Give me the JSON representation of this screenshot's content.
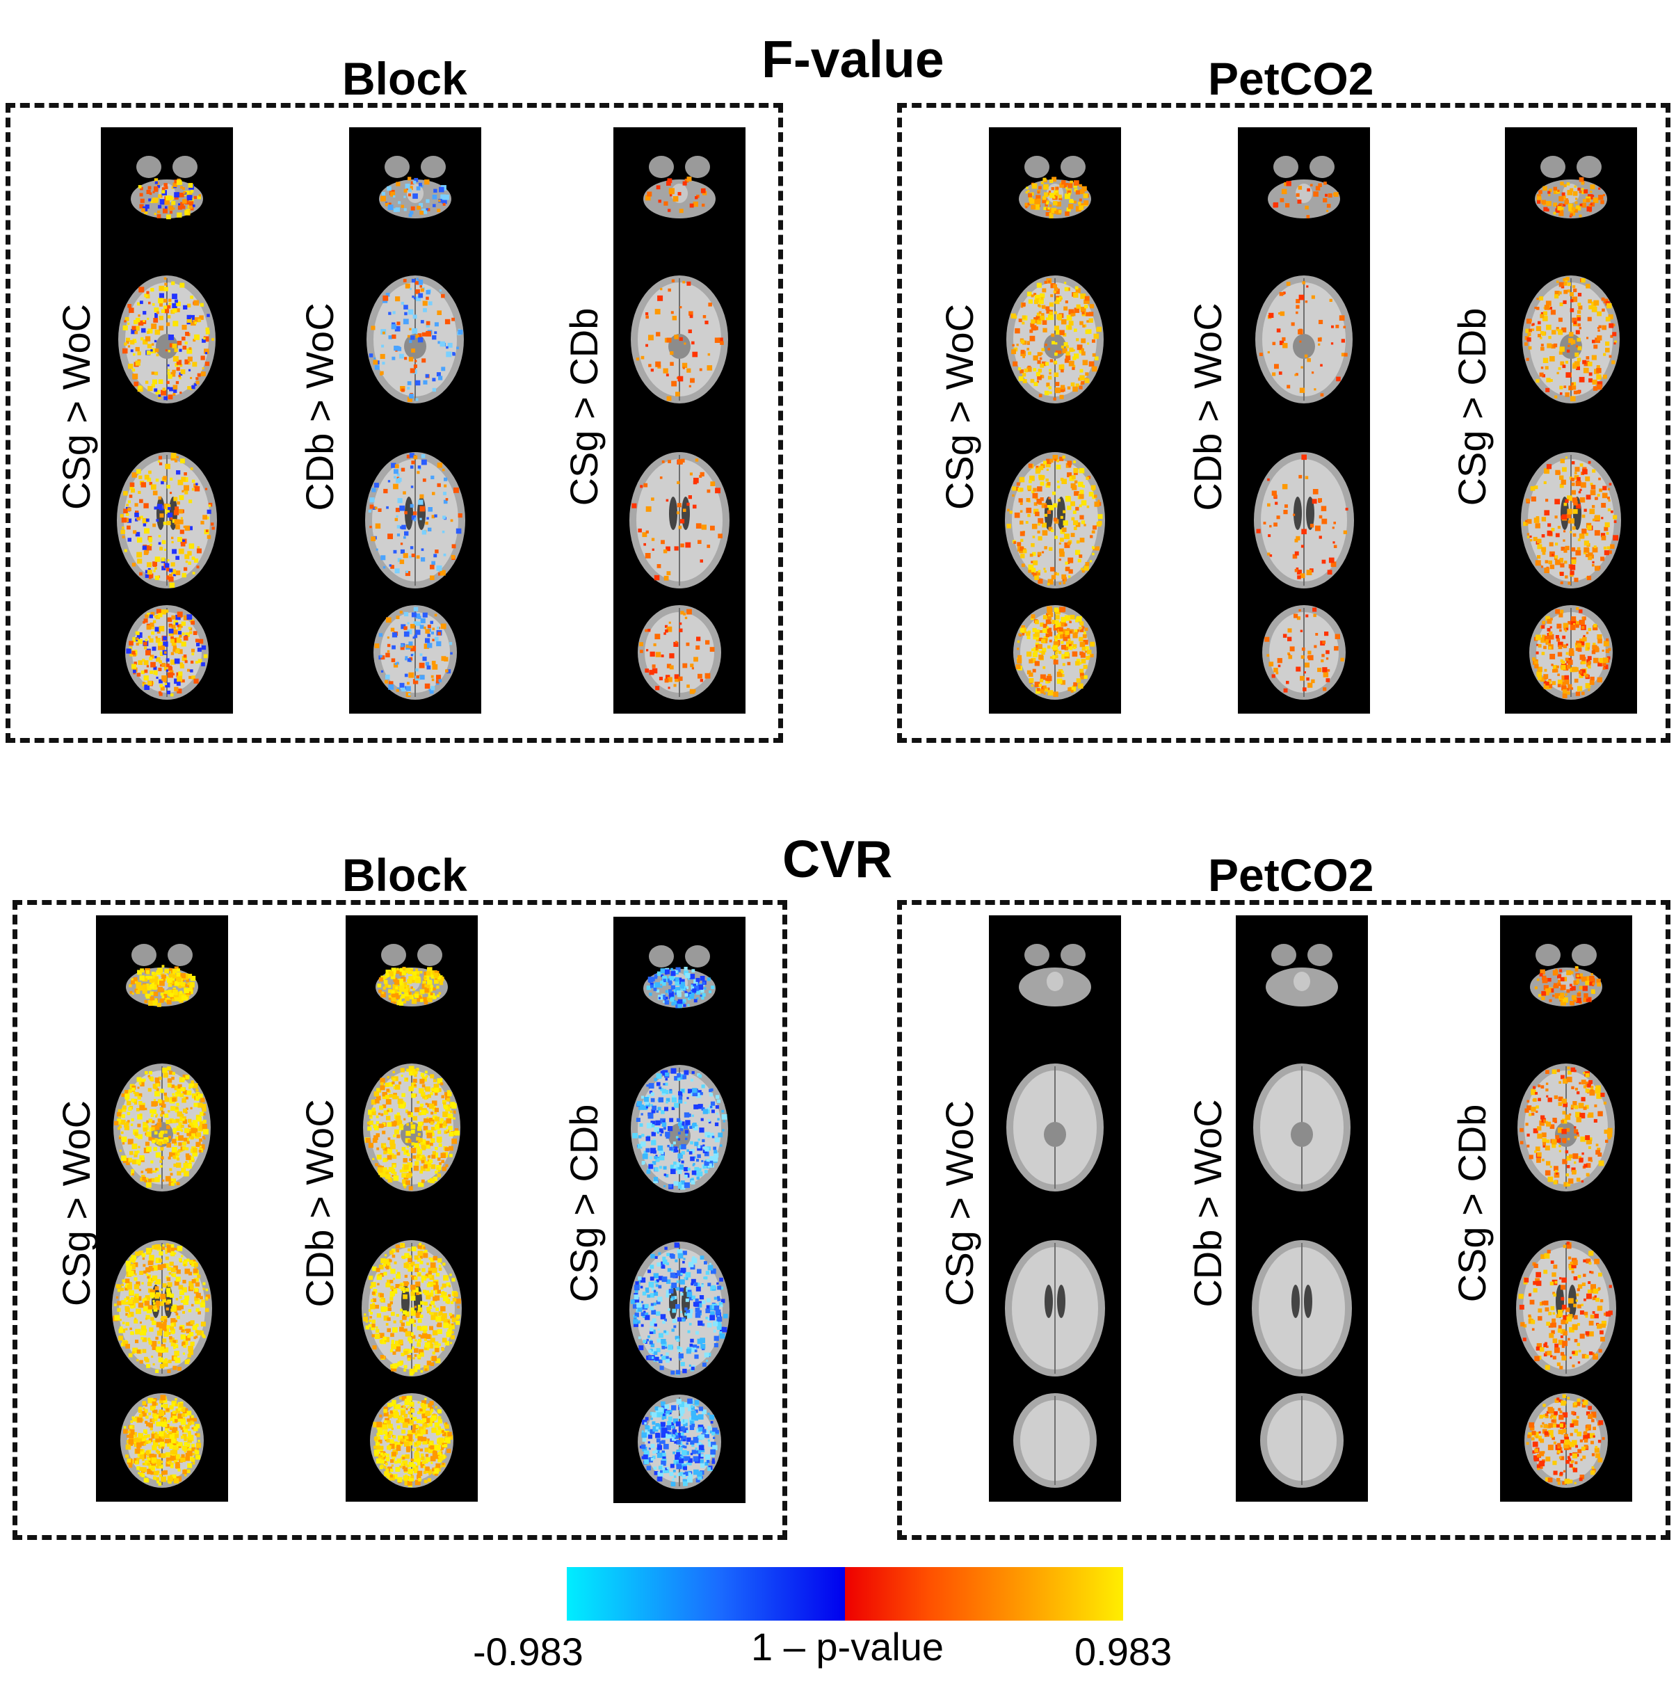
{
  "sections": [
    {
      "title": "F-value",
      "groups": [
        {
          "label": "Block",
          "contrasts": [
            "CSg > WoC",
            "CDb > WoC",
            "CSg > CDb"
          ],
          "overlays": [
            "mixed-yellow",
            "mixed-blue",
            "sparse-red"
          ]
        },
        {
          "label": "PetCO2",
          "contrasts": [
            "CSg > WoC",
            "CDb > WoC",
            "CSg > CDb"
          ],
          "overlays": [
            "yellow",
            "sparse-red",
            "orange"
          ]
        }
      ]
    },
    {
      "title": "CVR",
      "groups": [
        {
          "label": "Block",
          "contrasts": [
            "CSg > WoC",
            "CDb > WoC",
            "CSg > CDb"
          ],
          "overlays": [
            "solid-yellow",
            "solid-yellow",
            "cyan"
          ]
        },
        {
          "label": "PetCO2",
          "contrasts": [
            "CSg > WoC",
            "CDb > WoC",
            "CSg > CDb"
          ],
          "overlays": [
            "none",
            "none",
            "orange"
          ]
        }
      ]
    }
  ],
  "colorbar": {
    "min_label": "-0.983",
    "max_label": "0.983",
    "axis_label": "1 – p-value",
    "negative_colors": [
      "#00eeff",
      "#1a6bff",
      "#0000ee"
    ],
    "positive_colors": [
      "#ee0000",
      "#ff5000",
      "#ff9d00",
      "#ffee00"
    ]
  }
}
